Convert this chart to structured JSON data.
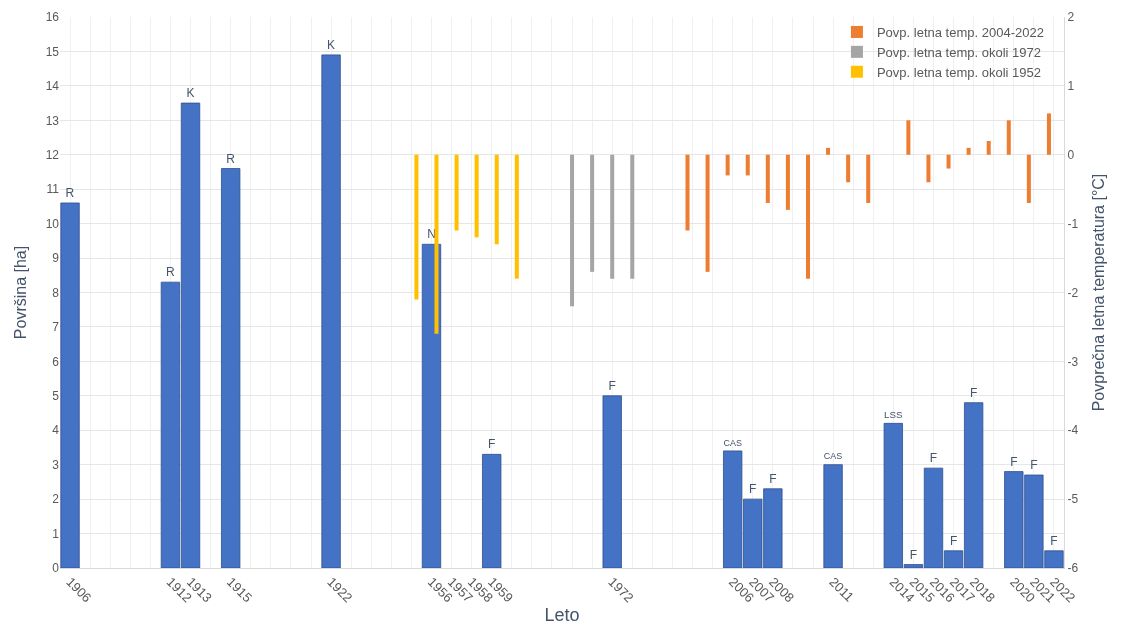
{
  "chart_data": {
    "type": "bar",
    "xlabel": "Leto",
    "ylabel": "Površina [ha]",
    "y2label": "Povprečna letna temperatura [°C]",
    "categories": [
      "1906",
      null,
      null,
      null,
      null,
      "1912",
      "1913",
      null,
      "1915",
      null,
      null,
      null,
      null,
      "1922",
      null,
      null,
      null,
      null,
      "1956",
      "1957",
      "1958",
      "1959",
      null,
      null,
      null,
      null,
      null,
      "1972",
      null,
      null,
      null,
      null,
      null,
      "2006",
      "2007",
      "2008",
      null,
      null,
      "2011",
      null,
      null,
      "2014",
      "2015",
      "2016",
      "2017",
      "2018",
      null,
      "2020",
      "2021",
      "2022"
    ],
    "series": [
      {
        "color": "#4472c4",
        "values": [
          10.6,
          null,
          null,
          null,
          null,
          8.3,
          13.5,
          null,
          11.6,
          null,
          null,
          null,
          null,
          14.9,
          null,
          null,
          null,
          null,
          9.4,
          null,
          null,
          3.3,
          null,
          null,
          null,
          null,
          null,
          5.0,
          null,
          null,
          null,
          null,
          null,
          3.4,
          2.0,
          2.3,
          null,
          null,
          3.0,
          null,
          null,
          4.2,
          0.1,
          2.9,
          0.5,
          4.8,
          null,
          2.8,
          2.7,
          0.5
        ],
        "value_labels": [
          "R",
          null,
          null,
          null,
          null,
          "R",
          "K",
          null,
          "R",
          null,
          null,
          null,
          null,
          "K",
          null,
          null,
          null,
          null,
          "N",
          null,
          null,
          "F",
          null,
          null,
          null,
          null,
          null,
          "F",
          null,
          null,
          null,
          null,
          null,
          "CAS",
          "F",
          "F",
          null,
          null,
          "CAS",
          null,
          null,
          "LSS",
          "F",
          "F",
          "F",
          "F",
          null,
          "F",
          "F",
          "F"
        ]
      },
      {
        "name": "Povp. letna temp. 2004-2022",
        "color": "#ed7d31",
        "axis": "y2",
        "values": [
          null,
          null,
          null,
          null,
          null,
          null,
          null,
          null,
          null,
          null,
          null,
          null,
          null,
          null,
          null,
          null,
          null,
          null,
          null,
          null,
          null,
          null,
          null,
          null,
          null,
          null,
          null,
          null,
          null,
          null,
          null,
          -1.1,
          -1.7,
          -0.3,
          -0.3,
          -0.7,
          -0.8,
          -1.8,
          0.1,
          -0.4,
          -0.7,
          null,
          0.5,
          -0.4,
          -0.2,
          0.1,
          0.2,
          0.5,
          -0.7,
          0.6
        ]
      },
      {
        "name": "Povp. letna temp. okoli 1972",
        "color": "#a5a5a5",
        "axis": "y2",
        "values": [
          null,
          null,
          null,
          null,
          null,
          null,
          null,
          null,
          null,
          null,
          null,
          null,
          null,
          null,
          null,
          null,
          null,
          null,
          null,
          null,
          null,
          null,
          null,
          null,
          null,
          -2.2,
          -1.7,
          -1.8,
          -1.8,
          null,
          null,
          null,
          null,
          null,
          null,
          null,
          null,
          null,
          null,
          null,
          null,
          null,
          null,
          null,
          null,
          null,
          null,
          null,
          null,
          null
        ]
      },
      {
        "name": "Povp. letna temp. okoli 1952",
        "color": "#ffc000",
        "axis": "y2",
        "values": [
          null,
          null,
          null,
          null,
          null,
          null,
          null,
          null,
          null,
          null,
          null,
          null,
          null,
          null,
          null,
          null,
          null,
          -2.1,
          -2.6,
          -1.1,
          -1.2,
          -1.3,
          -1.8,
          null,
          null,
          null,
          null,
          null,
          null,
          null,
          null,
          null,
          null,
          null,
          null,
          null,
          null,
          null,
          null,
          null,
          null,
          null,
          null,
          null,
          null,
          null,
          null,
          null,
          null,
          null
        ]
      }
    ],
    "ylim": [
      0,
      16
    ],
    "yticks": [
      0,
      1,
      2,
      3,
      4,
      5,
      6,
      7,
      8,
      9,
      10,
      11,
      12,
      13,
      14,
      15,
      16
    ],
    "y2lim": [
      -6,
      2
    ],
    "y2ticks": [
      -6,
      -5,
      -4,
      -3,
      -2,
      -1,
      0,
      1,
      2
    ],
    "grid": true,
    "legend": "top right"
  }
}
